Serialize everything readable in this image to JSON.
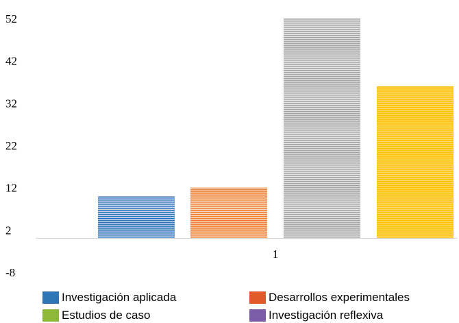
{
  "chart_data": {
    "type": "bar",
    "categories": [
      "1"
    ],
    "series": [
      {
        "name": "Investigación aplicada",
        "values": [
          10
        ],
        "color": "#2e75b6",
        "stripe": "#c9d6f2"
      },
      {
        "name": "Desarrollos experimentales",
        "values": [
          12
        ],
        "color": "#ed7d31",
        "stripe": "#fbd8bd"
      },
      {
        "name": "Estudios de caso",
        "values": [
          52
        ],
        "color": "#a5a5a5",
        "stripe": "#e3e3e3"
      },
      {
        "name": "Investigación reflexiva",
        "values": [
          36
        ],
        "color": "#ffc000",
        "stripe": "#ffd966"
      }
    ],
    "legend_colors": [
      "#2e75b6",
      "#e05a2b",
      "#8db83a",
      "#7b5ea7"
    ],
    "ylim": [
      -8,
      52
    ],
    "yticks": [
      52,
      42,
      32,
      22,
      12,
      2,
      -8
    ],
    "legend_position": "bottom",
    "grid": false
  }
}
